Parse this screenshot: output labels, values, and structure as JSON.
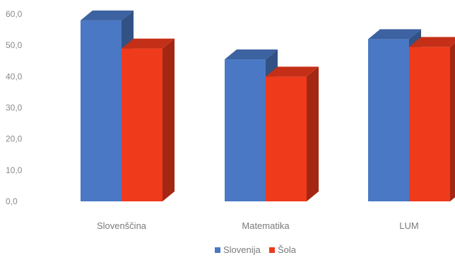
{
  "chart_data": {
    "type": "bar",
    "categories": [
      "Slovenščina",
      "Matematika",
      "LUM"
    ],
    "series": [
      {
        "name": "Slovenija",
        "values": [
          58.0,
          45.5,
          52.0
        ],
        "color": "#4a78c4"
      },
      {
        "name": "Šola",
        "values": [
          49.0,
          40.0,
          49.5
        ],
        "color": "#ef3a1c"
      }
    ],
    "yticks": [
      "0,0",
      "10,0",
      "20,0",
      "30,0",
      "40,0",
      "50,0",
      "60,0"
    ],
    "ylim": [
      0,
      60
    ],
    "grid": false,
    "legend_position": "bottom",
    "style": "3d"
  }
}
